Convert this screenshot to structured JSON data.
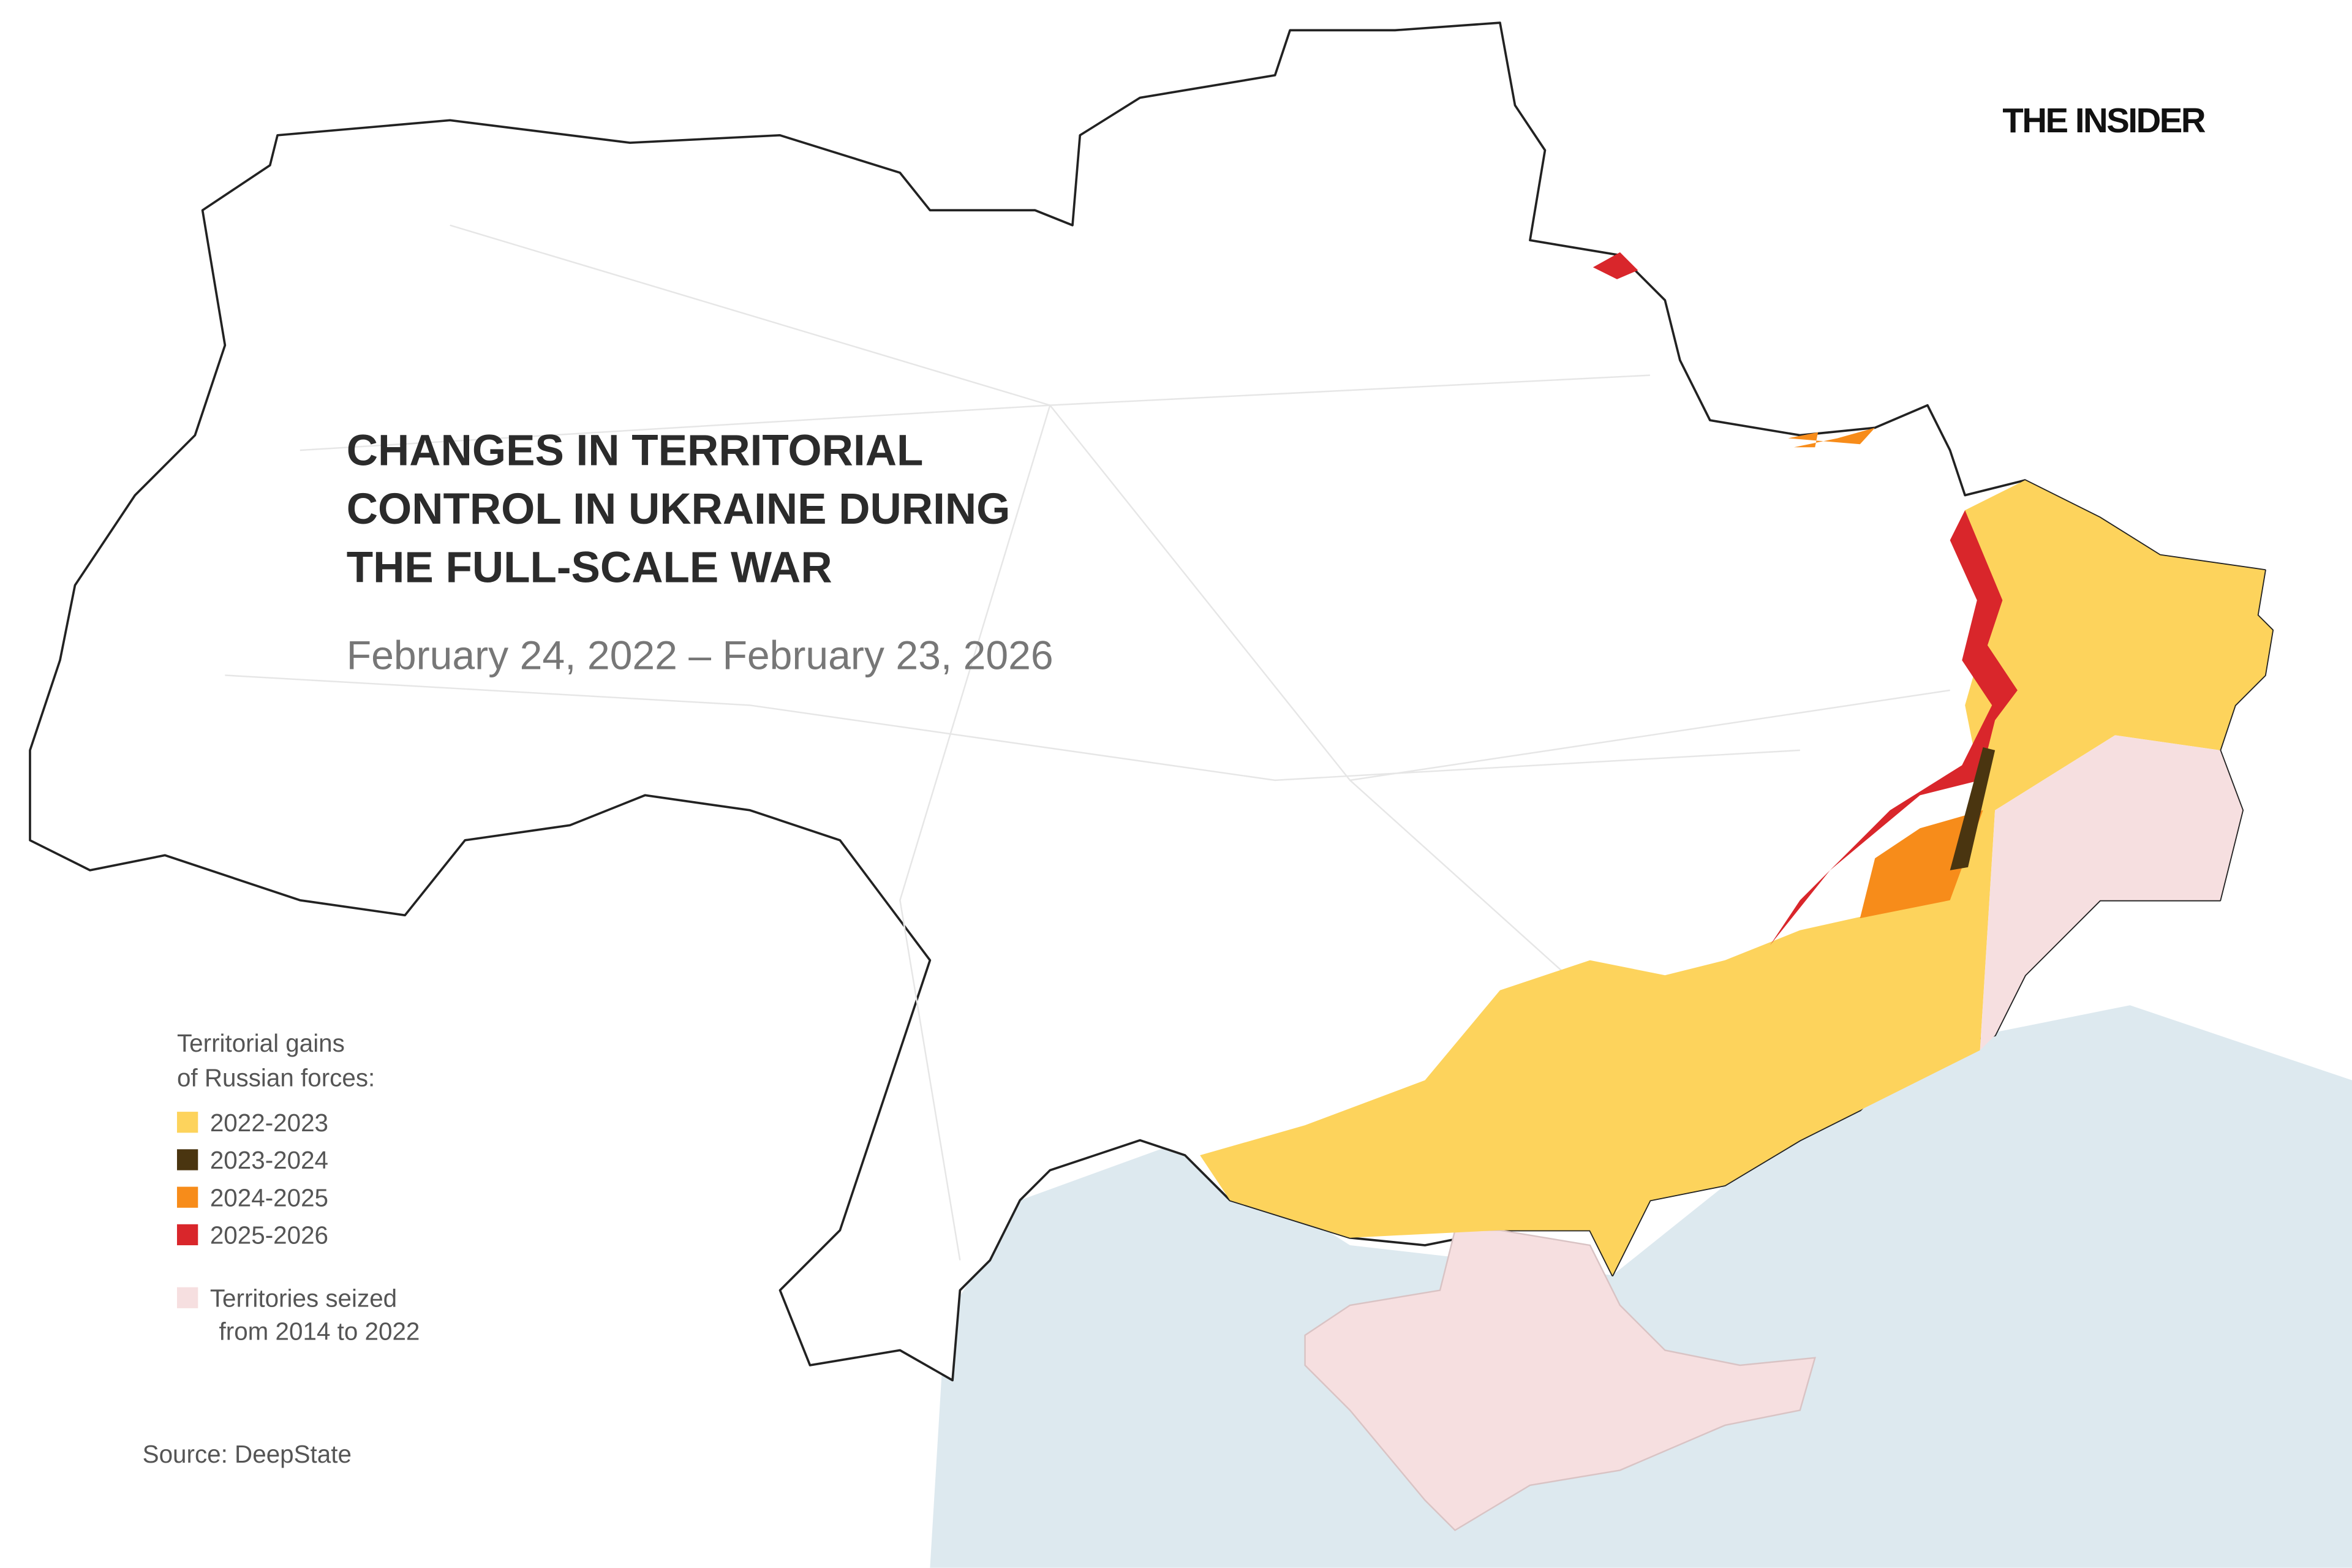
{
  "brand": "THE INSIDER",
  "title": [
    "CHANGES IN TERRITORIAL",
    "CONTROL IN UKRAINE DURING",
    "THE FULL-SCALE WAR"
  ],
  "subtitle": "February 24, 2022 – February 23, 2026",
  "legend": {
    "title": [
      "Territorial gains",
      "of Russian forces:"
    ],
    "items": [
      {
        "label": "2022-2023",
        "color": "#fdd35c"
      },
      {
        "label": "2023-2024",
        "color": "#4a3510"
      },
      {
        "label": "2024-2025",
        "color": "#f78c1a"
      },
      {
        "label": "2025-2026",
        "color": "#d9262b"
      }
    ],
    "seized": {
      "label": [
        "Territories seized",
        "from 2014 to 2022"
      ],
      "color": "#f6dfe0"
    }
  },
  "source": "Source: DeepState"
}
